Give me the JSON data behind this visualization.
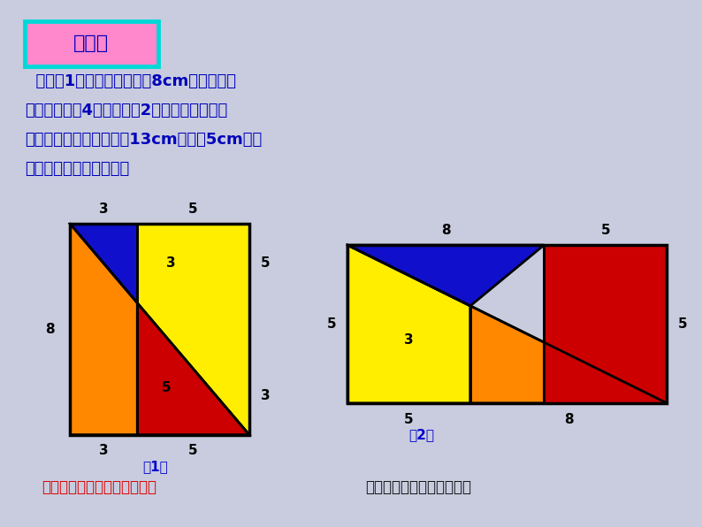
{
  "bg_color": "#c8ccde",
  "title_box_bg": "#ff88cc",
  "title_box_border": "#00d8d8",
  "title_text": "做一做",
  "title_text_color": "#0000bb",
  "main_text_lines": [
    "  如图（1），是一张边长为8cm的正方形纸",
    "片，把它剪成4块，按图（2）所示重新拼合。",
    "这四块恰能拼成一个长为13cm，宽为5cm的长",
    "方形纸片吗？先拼拼看！"
  ],
  "main_text_color": "#0000bb",
  "bottom_text1": "从拼图操作中，你有何启发？",
  "bottom_text1_color": "#dd0000",
  "bottom_text2": "实验和操作的结果会有误差",
  "bottom_text2_color": "#111111",
  "label_color": "#0000cc",
  "colors": {
    "blue": "#1010cc",
    "yellow": "#ffee00",
    "orange": "#ff8800",
    "red": "#cc0000"
  },
  "f1x": 0.1,
  "f1y": 0.175,
  "f1w": 0.255,
  "f1h": 0.4,
  "f2x": 0.495,
  "f2y": 0.235,
  "f2w": 0.455,
  "f2h": 0.3
}
